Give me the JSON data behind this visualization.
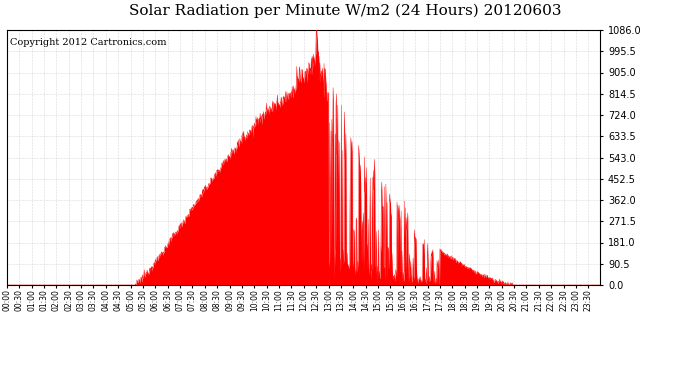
{
  "title": "Solar Radiation per Minute W/m2 (24 Hours) 20120603",
  "copyright": "Copyright 2012 Cartronics.com",
  "yticks": [
    0.0,
    90.5,
    181.0,
    271.5,
    362.0,
    452.5,
    543.0,
    633.5,
    724.0,
    814.5,
    905.0,
    995.5,
    1086.0
  ],
  "ymin": 0.0,
  "ymax": 1086.0,
  "fill_color": "red",
  "line_color": "red",
  "dashed_line_color": "#ff0000",
  "bg_color": "white",
  "grid_color": "#b0b0b0",
  "title_fontsize": 11,
  "copyright_fontsize": 7
}
